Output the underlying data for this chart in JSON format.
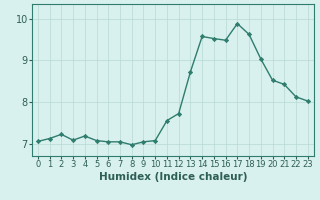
{
  "x": [
    0,
    1,
    2,
    3,
    4,
    5,
    6,
    7,
    8,
    9,
    10,
    11,
    12,
    13,
    14,
    15,
    16,
    17,
    18,
    19,
    20,
    21,
    22,
    23
  ],
  "y": [
    7.05,
    7.12,
    7.22,
    7.08,
    7.18,
    7.07,
    7.04,
    7.04,
    6.97,
    7.04,
    7.07,
    7.55,
    7.72,
    8.72,
    9.57,
    9.52,
    9.48,
    9.88,
    9.62,
    9.03,
    8.52,
    8.42,
    8.12,
    8.02
  ],
  "line_color": "#2e7d6e",
  "marker": "D",
  "marker_size": 2.2,
  "bg_color": "#d8f0ee",
  "grid_color": "#b8d8d4",
  "xlabel": "Humidex (Indice chaleur)",
  "xlim": [
    -0.5,
    23.5
  ],
  "ylim": [
    6.7,
    10.35
  ],
  "yticks": [
    7,
    8,
    9,
    10
  ],
  "xticks": [
    0,
    1,
    2,
    3,
    4,
    5,
    6,
    7,
    8,
    9,
    10,
    11,
    12,
    13,
    14,
    15,
    16,
    17,
    18,
    19,
    20,
    21,
    22,
    23
  ],
  "tick_color": "#2e5f56",
  "label_fontsize": 6.0,
  "ylabel_fontsize": 7.0,
  "xlabel_fontsize": 7.5,
  "axis_color": "#2e7d6e",
  "linewidth": 1.0
}
